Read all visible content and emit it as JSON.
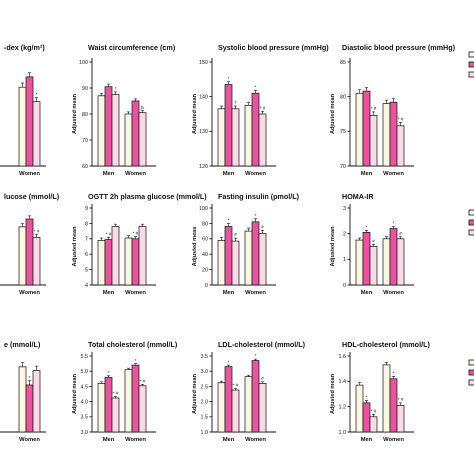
{
  "colors": {
    "series": [
      "#fdf6e3",
      "#e8559e",
      "#fbd9e6"
    ],
    "bar_outline": "#111111"
  },
  "ylabel": "Adjusted mean",
  "chart_data": [
    {
      "type": "bar",
      "title": "-dex (kg/m²)",
      "categories": [
        "",
        "Women"
      ],
      "ylim": [
        null,
        null
      ],
      "yticks": [],
      "ylabel": "",
      "series": [
        {
          "values": [
            null,
            26.6
          ]
        },
        {
          "values": [
            null,
            27.6
          ]
        },
        {
          "values": [
            null,
            25.2
          ]
        }
      ],
      "errors": [
        null,
        0.4
      ],
      "sig": [
        [
          "",
          ""
        ],
        [
          "",
          "*"
        ]
      ]
    },
    {
      "type": "bar",
      "title": "Waist circumference (cm)",
      "categories": [
        "Men",
        "Women"
      ],
      "ylim": [
        60,
        100
      ],
      "yticks": [
        "60",
        "70",
        "80",
        "90",
        "100"
      ],
      "ylabel": "Adjusted mean",
      "series": [
        {
          "values": [
            87.0,
            80.0
          ]
        },
        {
          "values": [
            90.5,
            85.0
          ]
        },
        {
          "values": [
            87.5,
            80.5
          ]
        }
      ],
      "errors": [
        1.0,
        0.8
      ],
      "sig": [
        [
          "",
          ""
        ],
        [
          "*",
          "b"
        ]
      ]
    },
    {
      "type": "bar",
      "title": "Systolic blood pressure (mmHg)",
      "categories": [
        "Men",
        "Women"
      ],
      "ylim": [
        120,
        150
      ],
      "yticks": [
        "120",
        "130",
        "140",
        "150"
      ],
      "ylabel": "Adjusted mean",
      "series": [
        {
          "values": [
            136.5,
            137.5
          ]
        },
        {
          "values": [
            143.5,
            141.0
          ]
        },
        {
          "values": [
            136.5,
            135.0
          ]
        }
      ],
      "errors": [
        0.8,
        0.8
      ],
      "sig": [
        [
          "*",
          "*"
        ],
        [
          "†",
          "* #"
        ]
      ]
    },
    {
      "type": "bar",
      "title": "Diastolic blood pressure (mmHg)",
      "categories": [
        "Men",
        "Women"
      ],
      "ylim": [
        70,
        85
      ],
      "yticks": [
        "70",
        "75",
        "80",
        "85"
      ],
      "ylabel": "Adjusted mean",
      "series": [
        {
          "values": [
            80.5,
            79.0
          ]
        },
        {
          "values": [
            80.8,
            79.2
          ]
        },
        {
          "values": [
            77.3,
            75.8
          ]
        }
      ],
      "errors": [
        0.5,
        0.5
      ],
      "sig": [
        [
          "",
          ""
        ],
        [
          "* #",
          "* #"
        ]
      ]
    },
    {
      "type": "bar",
      "title": "lucose (mmol/L)",
      "categories": [
        "",
        "Women"
      ],
      "ylim": [
        null,
        null
      ],
      "yticks": [],
      "ylabel": "",
      "series": [
        {
          "values": [
            null,
            5.45
          ]
        },
        {
          "values": [
            null,
            5.6
          ]
        },
        {
          "values": [
            null,
            5.25
          ]
        }
      ],
      "errors": [
        null,
        0.06
      ],
      "sig": [
        [
          "",
          ""
        ],
        [
          "",
          "* #"
        ]
      ]
    },
    {
      "type": "bar",
      "title": "OGTT 2h plasma glucose (mmol/L)",
      "categories": [
        "Men",
        "Women"
      ],
      "ylim": [
        4,
        9
      ],
      "yticks": [
        "4",
        "5",
        "6",
        "7",
        "8",
        "9"
      ],
      "ylabel": "Adjusted mean",
      "series": [
        {
          "values": [
            6.9,
            7.05
          ]
        },
        {
          "values": [
            6.95,
            7.0
          ]
        },
        {
          "values": [
            7.8,
            7.8
          ]
        }
      ],
      "errors": [
        0.15,
        0.15
      ],
      "sig": [
        [
          "* #",
          "* #"
        ],
        [
          "",
          ""
        ]
      ]
    },
    {
      "type": "bar",
      "title": "Fasting insulin (pmol/L)",
      "categories": [
        "Men",
        "Women"
      ],
      "ylim": [
        0,
        100
      ],
      "yticks": [
        "0",
        "20",
        "40",
        "60",
        "80",
        "100"
      ],
      "ylabel": "Adjusted meas",
      "series": [
        {
          "values": [
            58,
            70
          ]
        },
        {
          "values": [
            76,
            82
          ]
        },
        {
          "values": [
            57,
            67
          ]
        }
      ],
      "errors": [
        4,
        4
      ],
      "sig": [
        [
          "*",
          "*"
        ],
        [
          "#",
          "#"
        ]
      ]
    },
    {
      "type": "bar",
      "title": "HOMA-IR",
      "categories": [
        "Men",
        "Women"
      ],
      "ylim": [
        0,
        3
      ],
      "yticks": [
        "0",
        "1",
        "2",
        "3"
      ],
      "ylabel": "Adjusted mean",
      "series": [
        {
          "values": [
            1.75,
            1.8
          ]
        },
        {
          "values": [
            2.05,
            2.2
          ]
        },
        {
          "values": [
            1.5,
            1.8
          ]
        }
      ],
      "errors": [
        0.08,
        0.08
      ],
      "sig": [
        [
          "*",
          "*"
        ],
        [
          "#",
          "#"
        ]
      ]
    },
    {
      "type": "bar",
      "title": "e (mmol/L)",
      "categories": [
        "",
        "Women"
      ],
      "ylim": [
        null,
        null
      ],
      "yticks": [],
      "ylabel": "",
      "series": [
        {
          "values": [
            null,
            1.7
          ]
        },
        {
          "values": [
            null,
            1.45
          ]
        },
        {
          "values": [
            null,
            1.65
          ]
        }
      ],
      "errors": [
        null,
        0.06
      ],
      "sig": [
        [
          "",
          "*"
        ],
        [
          "",
          ""
        ]
      ]
    },
    {
      "type": "bar",
      "title": "Total cholesterol (mmol/L)",
      "categories": [
        "Men",
        "Women"
      ],
      "ylim": [
        3.0,
        5.5
      ],
      "yticks": [
        "3.0",
        "3.5",
        "4.0",
        "4.5",
        "5.0",
        "5.5"
      ],
      "ylabel": "Adjusted mean",
      "series": [
        {
          "values": [
            4.6,
            5.05
          ]
        },
        {
          "values": [
            4.8,
            5.2
          ]
        },
        {
          "values": [
            4.12,
            4.52
          ]
        }
      ],
      "errors": [
        0.05,
        0.05
      ],
      "sig": [
        [
          "*",
          "*"
        ],
        [
          "* #",
          "* #"
        ]
      ]
    },
    {
      "type": "bar",
      "title": "LDL-cholesterol (mmol/L)",
      "categories": [
        "Men",
        "Women"
      ],
      "ylim": [
        1.0,
        3.5
      ],
      "yticks": [
        "1.0",
        "1.5",
        "2.0",
        "2.5",
        "3.0",
        "3.5"
      ],
      "ylabel": "Adjusted mean",
      "series": [
        {
          "values": [
            2.62,
            2.82
          ]
        },
        {
          "values": [
            3.15,
            3.35
          ]
        },
        {
          "values": [
            2.38,
            2.6
          ]
        }
      ],
      "errors": [
        0.05,
        0.05
      ],
      "sig": [
        [
          "*",
          "*"
        ],
        [
          "* #",
          "#"
        ]
      ]
    },
    {
      "type": "bar",
      "title": "HDL-cholesterol (mmol/L)",
      "categories": [
        "Men",
        "Women"
      ],
      "ylim": [
        1.0,
        1.6
      ],
      "yticks": [
        "1.0",
        "1.2",
        "1.4",
        "1.6"
      ],
      "ylabel": "Adjusted mean",
      "series": [
        {
          "values": [
            1.37,
            1.53
          ]
        },
        {
          "values": [
            1.23,
            1.42
          ]
        },
        {
          "values": [
            1.12,
            1.21
          ]
        }
      ],
      "errors": [
        0.02,
        0.02
      ],
      "sig": [
        [
          "*",
          "*"
        ],
        [
          "* #",
          "* #"
        ]
      ]
    }
  ]
}
